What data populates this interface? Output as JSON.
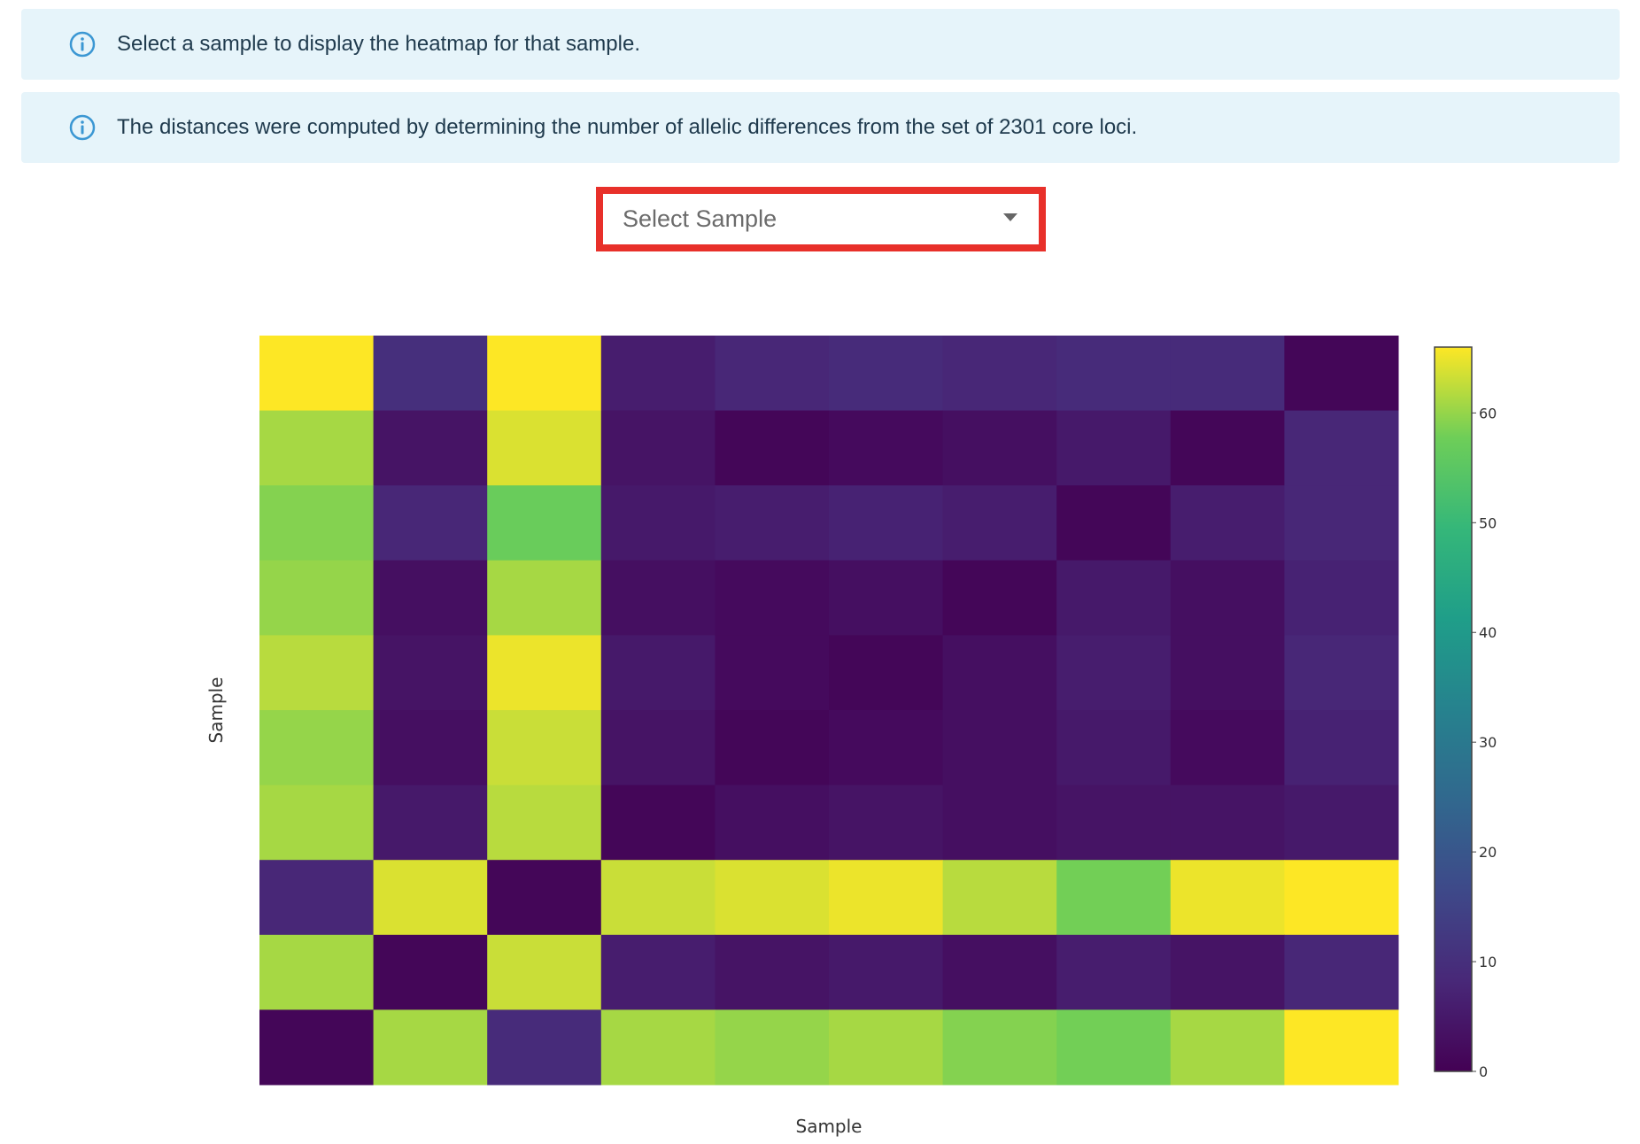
{
  "alerts": [
    {
      "icon": "info-icon",
      "text": "Select a sample to display the heatmap for that sample."
    },
    {
      "icon": "info-icon",
      "text": "The distances were computed by determining the number of allelic differences from the set of 2301 core loci."
    }
  ],
  "sample_select": {
    "placeholder": "Select Sample",
    "icon": "chevron-down-icon",
    "highlight_color": "#e8302a"
  },
  "chart_data": {
    "type": "heatmap",
    "xlabel": "Sample",
    "ylabel": "Sample",
    "colorscale": "viridis",
    "zlim": [
      0,
      66
    ],
    "colorbar_ticks": [
      0,
      10,
      20,
      30,
      40,
      50,
      60
    ],
    "z": [
      [
        66,
        10,
        66,
        6,
        8,
        9,
        8,
        9,
        9,
        1
      ],
      [
        61,
        4,
        64,
        4,
        1,
        2,
        3,
        5,
        1,
        8
      ],
      [
        59,
        8,
        57,
        5,
        6,
        7,
        6,
        1,
        6,
        8
      ],
      [
        60,
        3,
        61,
        3,
        2,
        3,
        1,
        5,
        3,
        7
      ],
      [
        62,
        4,
        65,
        5,
        2,
        1,
        3,
        6,
        3,
        8
      ],
      [
        60,
        3,
        63,
        4,
        1,
        2,
        3,
        5,
        2,
        7
      ],
      [
        61,
        5,
        62,
        1,
        3,
        4,
        3,
        4,
        4,
        5
      ],
      [
        8,
        64,
        1,
        63,
        64,
        65,
        62,
        58,
        65,
        66
      ],
      [
        61,
        1,
        63,
        6,
        4,
        5,
        3,
        6,
        4,
        8
      ],
      [
        1,
        61,
        9,
        61,
        60,
        61,
        59,
        58,
        61,
        66
      ]
    ]
  }
}
